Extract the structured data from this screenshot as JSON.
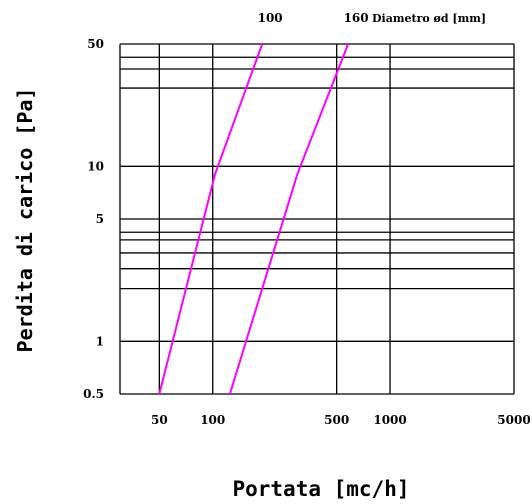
{
  "chart_data": {
    "type": "line",
    "title": "",
    "xlabel": "Portata [mc/h]",
    "ylabel": "Perdita di carico [Pa]",
    "legend_title": "Diametro ød [mm]",
    "x_scale": "log",
    "y_scale": "log",
    "xlim": [
      30,
      5000
    ],
    "ylim": [
      0.5,
      50
    ],
    "grid": true,
    "x_ticks": [
      {
        "value": 50,
        "label": "50"
      },
      {
        "value": 100,
        "label": "100"
      },
      {
        "value": 500,
        "label": "500"
      },
      {
        "value": 1000,
        "label": "1000"
      },
      {
        "value": 5000,
        "label": "5000"
      }
    ],
    "y_ticks": [
      {
        "value": 0.5,
        "label": "0.5"
      },
      {
        "value": 1,
        "label": "1"
      },
      {
        "value": 5,
        "label": "5"
      },
      {
        "value": 10,
        "label": "10"
      },
      {
        "value": 50,
        "label": "50"
      }
    ],
    "y_grid_values": [
      0.5,
      1,
      2,
      2.6,
      3.2,
      3.8,
      4.2,
      5,
      10,
      28,
      36,
      42,
      50
    ],
    "x_grid_values": [
      50,
      100,
      500,
      1000,
      5000
    ],
    "series": [
      {
        "name": "100",
        "color": "#ff00ff",
        "x": [
          50,
          103,
          190
        ],
        "y": [
          0.5,
          9,
          50
        ]
      },
      {
        "name": "160",
        "color": "#ff00ff",
        "x": [
          125,
          300,
          580
        ],
        "y": [
          0.5,
          9,
          50
        ]
      }
    ]
  }
}
